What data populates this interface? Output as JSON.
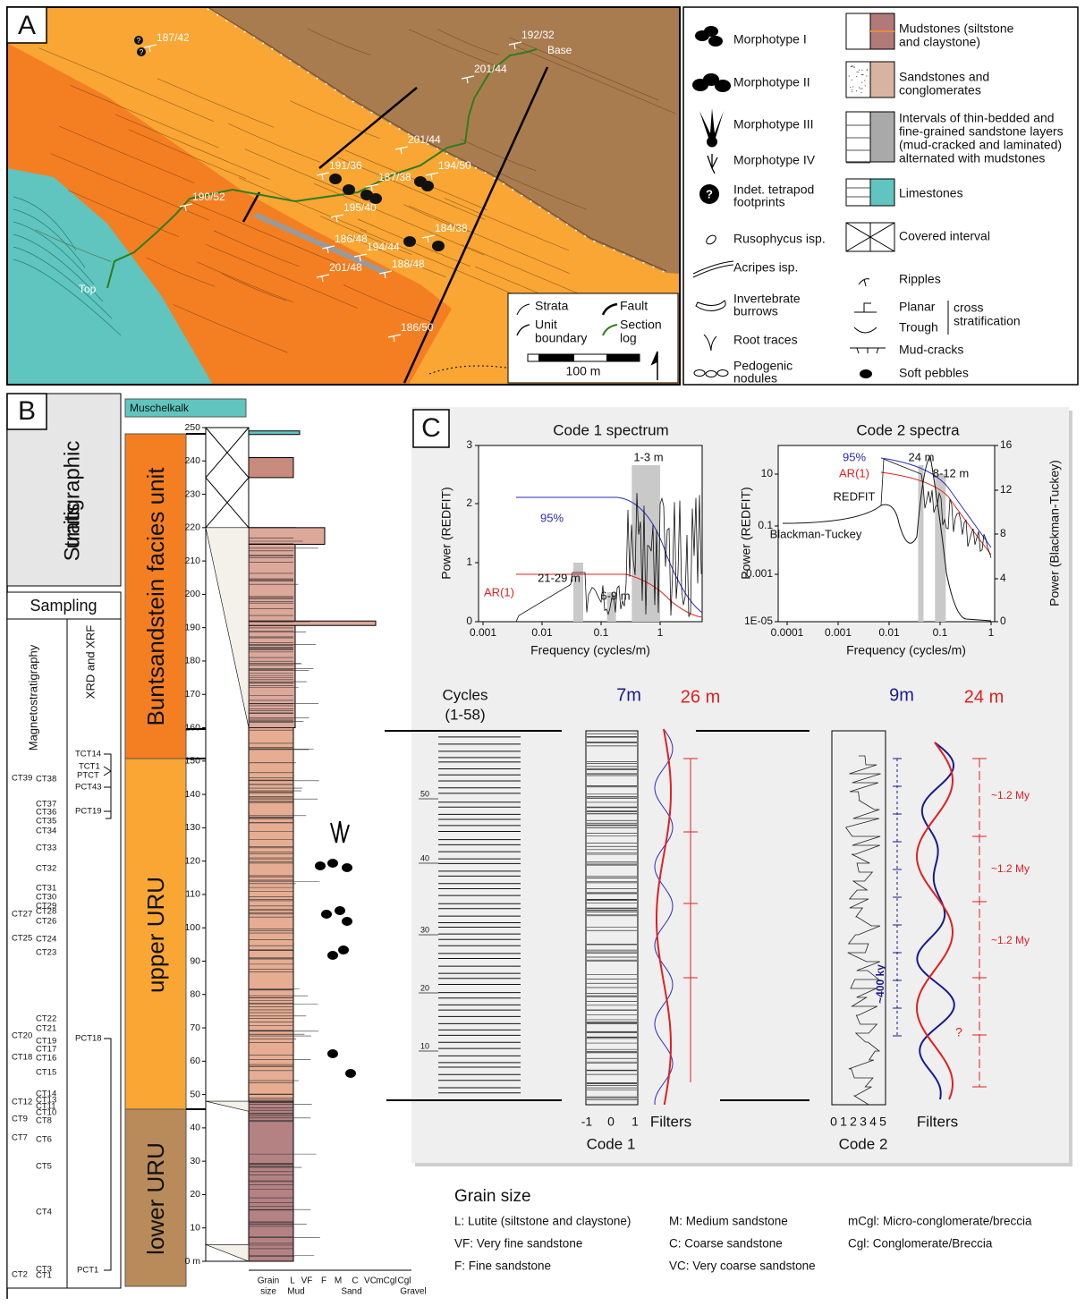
{
  "panel_a": {
    "label": "A",
    "attitudes": [
      "187/42",
      "192/32",
      "201/44",
      "201/44",
      "191/36",
      "187/38",
      "194/50",
      "190/52",
      "195/40",
      "186/48",
      "194/44",
      "184/38",
      "201/48",
      "188/48",
      "186/50"
    ],
    "base": "Base",
    "top": "Top",
    "inset": {
      "strata": "Strata",
      "fault": "Fault",
      "unit_boundary": [
        "Unit",
        "boundary"
      ],
      "section_log": [
        "Section",
        "log"
      ],
      "scale": "100 m"
    }
  },
  "legend": {
    "traces": [
      [
        "Morphotype I"
      ],
      [
        "Morphotype II"
      ],
      [
        "Morphotype III"
      ],
      [
        "Morphotype IV"
      ],
      [
        "Indet. tetrapod",
        "footprints"
      ],
      [
        "Rusophycus isp."
      ],
      [
        "Acripes isp."
      ],
      [
        "Invertebrate",
        "burrows"
      ],
      [
        "Root traces"
      ],
      [
        "Pedogenic",
        "nodules"
      ]
    ],
    "lithologies": [
      [
        "Mudstones (siltstone",
        "and claystone)"
      ],
      [
        "Sandstones and",
        "conglomerates"
      ],
      [
        "Intervals of thin-bedded and",
        "fine-grained sandstone layers",
        "(mud-cracked and laminated)",
        "alternated with mudstones"
      ],
      [
        "Limestones"
      ],
      [
        "Covered interval"
      ]
    ],
    "structures": [
      "Ripples",
      "Planar",
      "Trough",
      "Mud-cracks",
      "Soft pebbles"
    ],
    "cross": [
      "cross",
      "stratification"
    ]
  },
  "panel_b": {
    "label": "B",
    "stratigraphic_units": [
      "Stratigraphic",
      "units"
    ],
    "sampling": "Sampling",
    "magnetostratigraphy": "Magnetostratigraphy",
    "xrd_xrf": "XRD and XRF",
    "magneto_samples": [
      "CT39",
      "CT27",
      "CT25",
      "CT20",
      "CT18",
      "CT12",
      "CT9",
      "CT7",
      "CT2",
      "CT38",
      "CT37",
      "CT36",
      "CT35",
      "CT34",
      "CT33",
      "CT32",
      "CT31",
      "CT30",
      "CT29",
      "CT28",
      "CT26",
      "CT24",
      "CT23",
      "CT22",
      "CT21",
      "CT19",
      "CT17",
      "CT16",
      "CT15",
      "CT14",
      "CT13",
      "CT11",
      "CT10",
      "CT8",
      "CT6",
      "CT5",
      "CT4",
      "CT3",
      "CT1"
    ],
    "xrd_samples": [
      "TCT14",
      "TCT1",
      "PTCT",
      "PCT43",
      "PCT19",
      "PCT18",
      "PCT1"
    ],
    "units": [
      "Muschelkalk",
      "Buntsandstein facies unit",
      "upper URU",
      "lower URU"
    ],
    "depth_ticks": [
      "0 m",
      "10",
      "20",
      "30",
      "40",
      "50",
      "60",
      "70",
      "80",
      "90",
      "100",
      "110",
      "120",
      "130",
      "140",
      "150",
      "160",
      "170",
      "180",
      "190",
      "200",
      "210",
      "220",
      "230",
      "240",
      "250"
    ],
    "grain_axis": {
      "title": [
        "Grain",
        "size"
      ],
      "classes": [
        "L",
        "VF",
        "F",
        "M",
        "C",
        "VC",
        "mCgl",
        "Cgl"
      ],
      "groups": [
        "Mud",
        "Sand",
        "Gravel"
      ]
    }
  },
  "panel_c": {
    "label": "C",
    "code1_spectrum": {
      "title": "Code 1 spectrum",
      "y_label": "Power (REDFIT)",
      "x_label": "Frequency (cycles/m)",
      "yticks": [
        "0",
        "1",
        "2",
        "3"
      ],
      "xticks": [
        "0.001",
        "0.01",
        "0.1",
        "1"
      ],
      "annotations": [
        "1-3 m",
        "95%",
        "21-29 m",
        "6-9 m",
        "AR(1)"
      ]
    },
    "code2_spectra": {
      "title": "Code 2 spectra",
      "y_label": "Power (REDFIT)",
      "y2_label": "Power (Blackman-Tuckey)",
      "x_label": "Frequency (cycles/m)",
      "yticks": [
        "1E-05",
        "0.001",
        "0.1",
        "10"
      ],
      "y2ticks": [
        "0",
        "4",
        "8",
        "12",
        "16"
      ],
      "xticks": [
        "0.0001",
        "0.001",
        "0.01",
        "0.1",
        "1"
      ],
      "annotations": [
        "95%",
        "AR(1)",
        "24 m",
        "8-12 m",
        "REDFIT",
        "Blackman-Tuckey"
      ]
    },
    "cycles": {
      "title": "Cycles",
      "range": "(1-58)",
      "labels": [
        "10",
        "20",
        "30",
        "40",
        "50"
      ]
    },
    "code1": {
      "ticks": [
        "-1",
        "0",
        "1"
      ],
      "label": "Code 1",
      "filters": "Filters",
      "short": "7m",
      "long": "26 m"
    },
    "code2": {
      "ticks": [
        "0",
        "1",
        "2",
        "3",
        "4",
        "5"
      ],
      "label": "Code 2",
      "filters": "Filters",
      "short": "9m",
      "long": "24 m",
      "short_period": "~400 ky",
      "long_periods": [
        "~1.2 My",
        "~1.2 My",
        "~1.2 My"
      ],
      "uncertain": "?"
    }
  },
  "grain_size": {
    "title": "Grain size",
    "items": [
      "L: Lutite (siltstone and claystone)",
      "VF: Very fine sandstone",
      "F: Fine sandstone",
      "M: Medium sandstone",
      "C: Coarse sandstone",
      "VC: Very coarse sandstone",
      "mCgl: Micro-conglomerate/breccia",
      "Cgl: Conglomerate/Breccia"
    ]
  }
}
